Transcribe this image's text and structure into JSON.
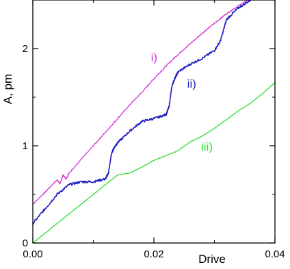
{
  "chart_data": {
    "type": "line",
    "xlabel": "Drive",
    "ylabel": "A, pm",
    "xlim": [
      0,
      0.04
    ],
    "ylim": [
      0,
      2.5
    ],
    "x_ticks": [
      0.0,
      0.02,
      0.04
    ],
    "x_tick_labels": [
      "0.00",
      "0.02",
      "0.04"
    ],
    "y_ticks": [
      0,
      1,
      2
    ],
    "y_tick_labels": [
      "0",
      "1",
      "2"
    ],
    "grid": false,
    "legend": "none",
    "series": [
      {
        "name": "i)",
        "color": "#d633d6",
        "noise": 0.006,
        "label_at": [
          0.0195,
          1.87
        ],
        "x": [
          0,
          0.002,
          0.004,
          0.0045,
          0.005,
          0.0055,
          0.006,
          0.008,
          0.01,
          0.012,
          0.014,
          0.016,
          0.018,
          0.02,
          0.022,
          0.024,
          0.026,
          0.028,
          0.03,
          0.032,
          0.034,
          0.036
        ],
        "y": [
          0.4,
          0.52,
          0.65,
          0.61,
          0.7,
          0.66,
          0.72,
          0.86,
          1.0,
          1.14,
          1.28,
          1.42,
          1.55,
          1.69,
          1.82,
          1.94,
          2.05,
          2.16,
          2.26,
          2.36,
          2.44,
          2.52
        ]
      },
      {
        "name": "ii)",
        "color": "#1f1fc2",
        "noise": 0.012,
        "label_at": [
          0.0255,
          1.6
        ],
        "x": [
          0,
          0.002,
          0.004,
          0.006,
          0.008,
          0.01,
          0.012,
          0.0125,
          0.013,
          0.0135,
          0.014,
          0.016,
          0.018,
          0.02,
          0.022,
          0.0225,
          0.023,
          0.0235,
          0.024,
          0.026,
          0.028,
          0.03,
          0.031,
          0.032,
          0.034,
          0.036
        ],
        "y": [
          0.2,
          0.35,
          0.5,
          0.6,
          0.63,
          0.63,
          0.66,
          0.72,
          0.92,
          0.99,
          1.03,
          1.15,
          1.25,
          1.28,
          1.32,
          1.4,
          1.62,
          1.7,
          1.76,
          1.84,
          1.9,
          1.98,
          2.08,
          2.3,
          2.42,
          2.5
        ]
      },
      {
        "name": "iii)",
        "color": "#33dd33",
        "noise": 0.002,
        "label_at": [
          0.0278,
          0.95
        ],
        "x": [
          0,
          0.002,
          0.004,
          0.006,
          0.008,
          0.01,
          0.012,
          0.014,
          0.016,
          0.018,
          0.02,
          0.022,
          0.024,
          0.026,
          0.028,
          0.03,
          0.032,
          0.034,
          0.036,
          0.038,
          0.04
        ],
        "y": [
          0.0,
          0.1,
          0.2,
          0.3,
          0.4,
          0.5,
          0.6,
          0.7,
          0.72,
          0.78,
          0.85,
          0.9,
          0.95,
          1.04,
          1.1,
          1.18,
          1.27,
          1.36,
          1.44,
          1.54,
          1.65
        ]
      }
    ]
  }
}
